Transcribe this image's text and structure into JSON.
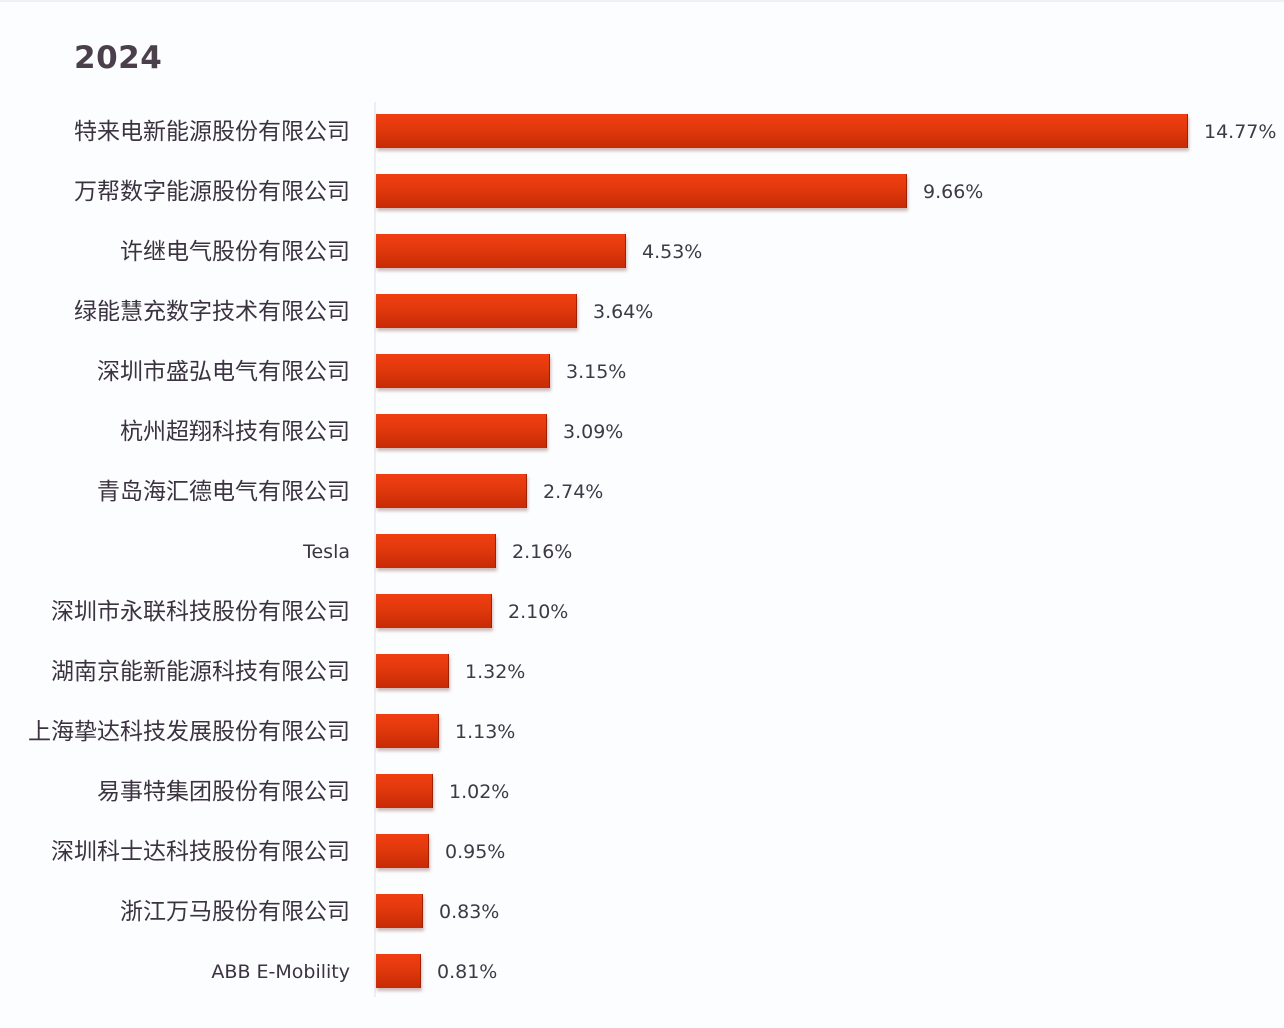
{
  "chart_data": {
    "type": "bar",
    "orientation": "horizontal",
    "title": "2024",
    "xlabel": "",
    "ylabel": "",
    "grid": false,
    "legend": null,
    "bar_color": "#e0380c",
    "value_format": "percent",
    "categories": [
      "特来电新能源股份有限公司",
      "万帮数字能源股份有限公司",
      "许继电气股份有限公司",
      "绿能慧充数字技术有限公司",
      "深圳市盛弘电气有限公司",
      "杭州超翔科技有限公司",
      "青岛海汇德电气有限公司",
      "Tesla",
      "深圳市永联科技股份有限公司",
      "湖南京能新能源科技有限公司",
      "上海挚达科技发展股份有限公司",
      "易事特集团股份有限公司",
      "深圳科士达科技股份有限公司",
      "浙江万马股份有限公司",
      "ABB E-Mobility"
    ],
    "values": [
      14.77,
      9.66,
      4.53,
      3.64,
      3.15,
      3.09,
      2.74,
      2.16,
      2.1,
      1.32,
      1.13,
      1.02,
      0.95,
      0.83,
      0.81
    ],
    "value_labels": [
      "14.77%",
      "9.66%",
      "4.53%",
      "3.64%",
      "3.15%",
      "3.09%",
      "2.74%",
      "2.16%",
      "2.10%",
      "1.32%",
      "1.13%",
      "1.02%",
      "0.95%",
      "0.83%",
      "0.81%"
    ],
    "xlim": [
      0,
      14.77
    ]
  }
}
